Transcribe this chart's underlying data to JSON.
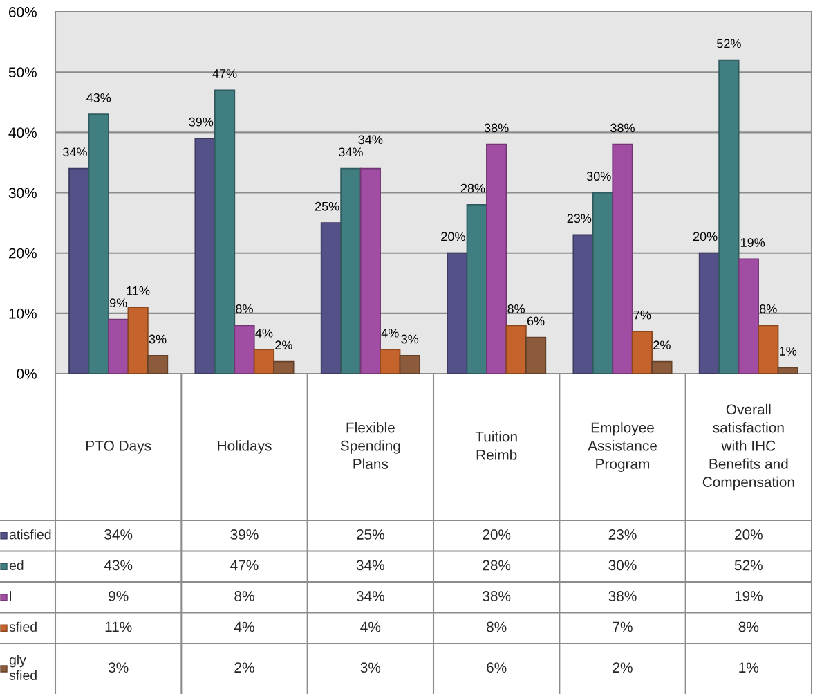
{
  "chart_data": {
    "type": "bar",
    "categories": [
      "PTO Days",
      "Holidays",
      "Flexible\nSpending\nPlans",
      "Tuition\nReimb",
      "Employee\nAssistance\nProgram",
      "Overall\nsatisfaction\nwith IHC\nBenefits and\nCompensation"
    ],
    "series": [
      {
        "name": "atisfied",
        "color": "#535187",
        "values": [
          34,
          39,
          25,
          20,
          23,
          20
        ],
        "value_labels": [
          "34%",
          "39%",
          "25%",
          "20%",
          "23%",
          "20%"
        ]
      },
      {
        "name": "ed",
        "color": "#417e82",
        "values": [
          43,
          47,
          34,
          28,
          30,
          52
        ],
        "value_labels": [
          "43%",
          "47%",
          "34%",
          "28%",
          "30%",
          "52%"
        ]
      },
      {
        "name": "l",
        "color": "#a04da3",
        "values": [
          9,
          8,
          34,
          38,
          38,
          19
        ],
        "value_labels": [
          "9%",
          "8%",
          "34%",
          "38%",
          "38%",
          "19%"
        ]
      },
      {
        "name": "sfied",
        "color": "#c4632b",
        "values": [
          11,
          4,
          4,
          8,
          7,
          8
        ],
        "value_labels": [
          "11%",
          "4%",
          "4%",
          "8%",
          "7%",
          "8%"
        ]
      },
      {
        "name": "gly\nsfied",
        "color": "#8b5b3b",
        "values": [
          3,
          2,
          3,
          6,
          2,
          1
        ],
        "value_labels": [
          "3%",
          "2%",
          "3%",
          "6%",
          "2%",
          "1%"
        ]
      }
    ],
    "ylim": [
      0,
      60
    ],
    "yticks": [
      {
        "value": 0,
        "label": "0%"
      },
      {
        "value": 10,
        "label": "10%"
      },
      {
        "value": 20,
        "label": "20%"
      },
      {
        "value": 30,
        "label": "30%"
      },
      {
        "value": 40,
        "label": "40%"
      },
      {
        "value": 50,
        "label": "50%"
      },
      {
        "value": 60,
        "label": "60%"
      }
    ],
    "grid": "y",
    "legend": "bottom left"
  }
}
